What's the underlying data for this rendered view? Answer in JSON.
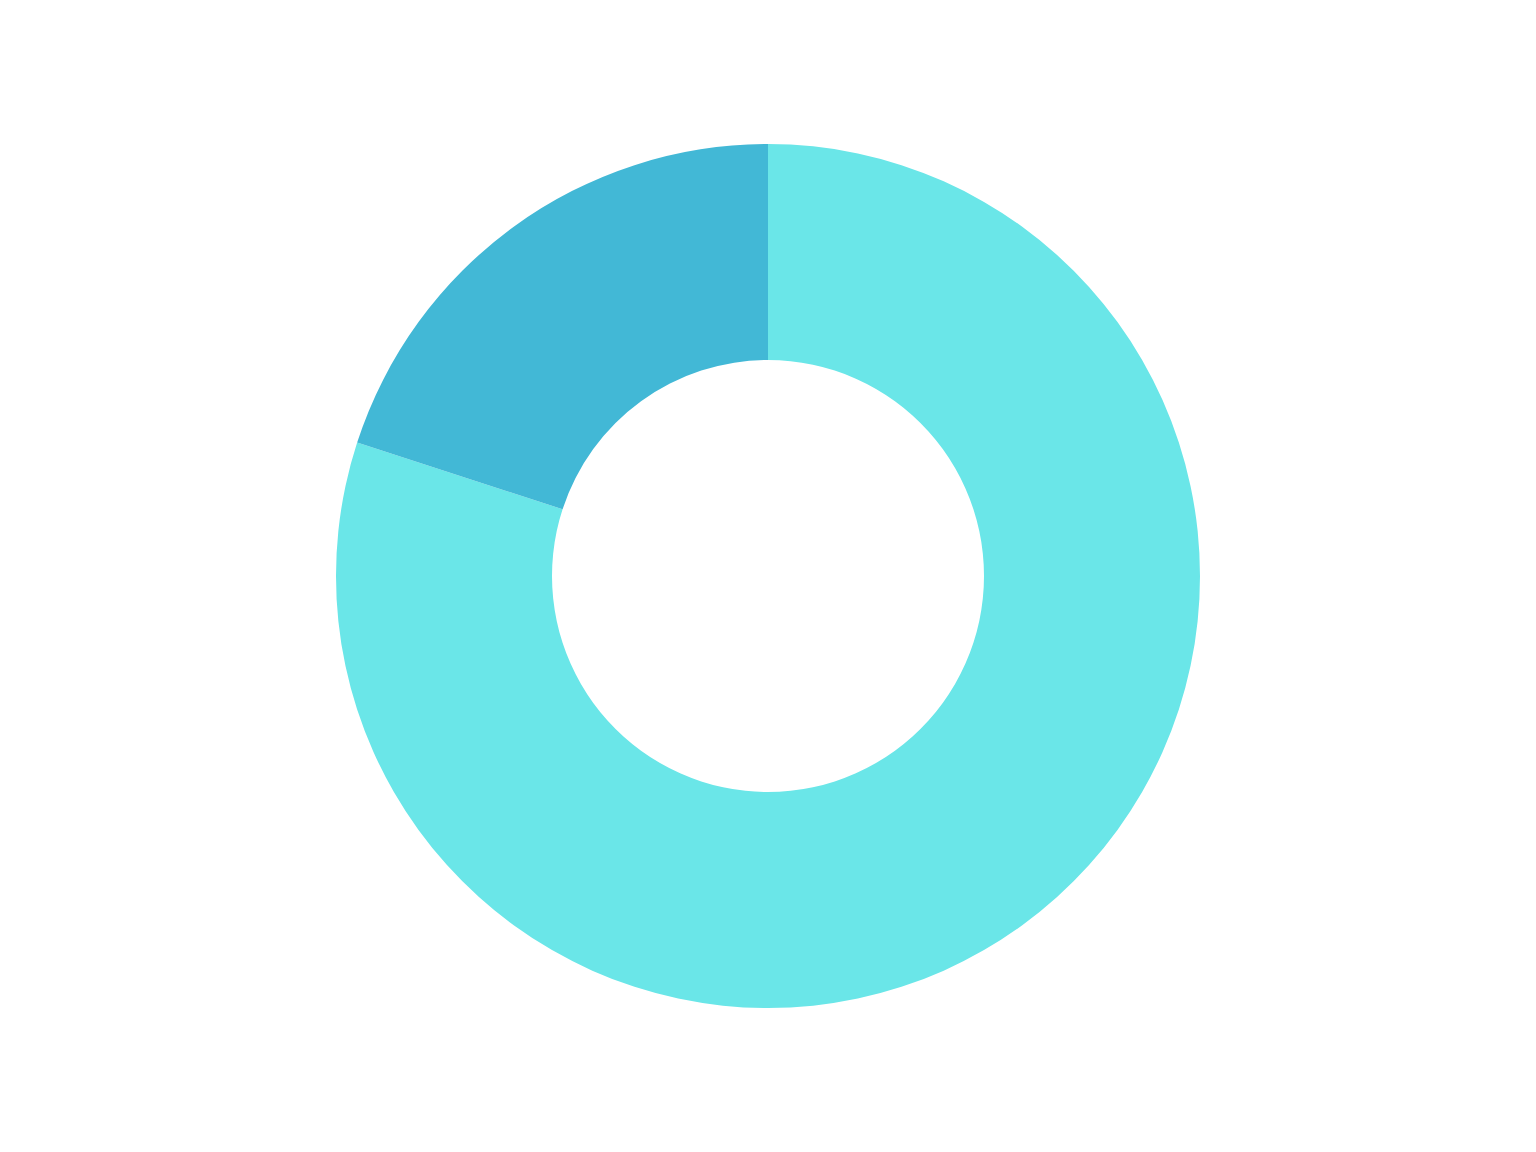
{
  "chart_data": {
    "type": "donut",
    "categories": [
      null,
      null
    ],
    "values": [
      80,
      20
    ],
    "colors": [
      "#6ae6e8",
      "#42b8d6"
    ]
  }
}
